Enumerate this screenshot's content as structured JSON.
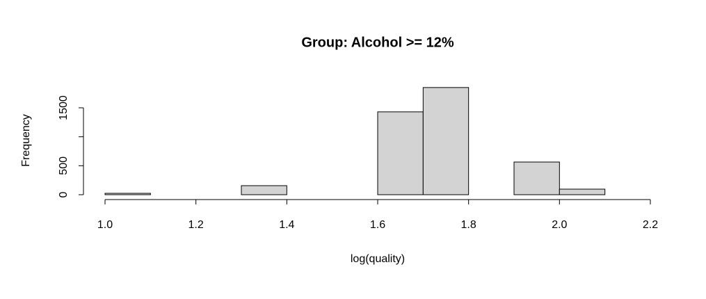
{
  "chart_data": {
    "type": "histogram",
    "title": "Group: Alcohol >= 12%",
    "x_label": "log(quality)",
    "y_label": "Frequency",
    "bins": [
      1.0,
      1.1,
      1.2,
      1.3,
      1.4,
      1.5,
      1.6,
      1.7,
      1.8,
      1.9,
      2.0,
      2.1
    ],
    "values": [
      24,
      0,
      0,
      156,
      0,
      0,
      1430,
      1850,
      0,
      564,
      96
    ],
    "color": "#d3d3d3",
    "xlim": [
      1.0,
      2.2
    ],
    "xticks": [
      {
        "value": 1.0,
        "label": "1.0"
      },
      {
        "value": 1.2,
        "label": "1.2"
      },
      {
        "value": 1.4,
        "label": "1.4"
      },
      {
        "value": 1.6,
        "label": "1.6"
      },
      {
        "value": 1.8,
        "label": "1.8"
      },
      {
        "value": 2.0,
        "label": "2.0"
      },
      {
        "value": 2.2,
        "label": "2.2"
      }
    ],
    "ylim": [
      0,
      1900
    ],
    "yticks": [
      0,
      500,
      {
        "value": 1000,
        "label": null
      },
      1500
    ]
  }
}
